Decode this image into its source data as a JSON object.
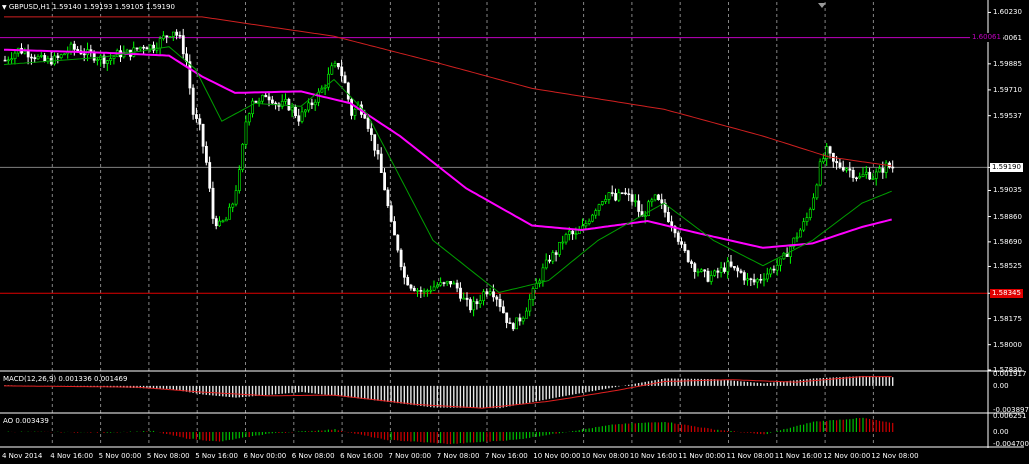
{
  "main_panel": {
    "symbol_label": "GBPUSD,H1",
    "ohlc": "1.59140 1.59193 1.59105 1.59190",
    "price_labels": [
      "1.60230",
      "1.60061",
      "1.59885",
      "1.59710",
      "1.59537",
      "1.59190",
      "1.59035",
      "1.58860",
      "1.58690",
      "1.58525",
      "1.58345",
      "1.58175",
      "1.58000",
      "1.57830"
    ],
    "current_price_tag": "1.59190",
    "upper_line_tag": "1.60061",
    "lower_line_tag": "1.58345",
    "colors": {
      "bull": "#00ff00",
      "bear": "#ffffff",
      "ma_fast": "#00a000",
      "ma_mid": "#ff00ff",
      "ma_slow": "#d02020",
      "hline_upper": "#c000c0",
      "hline_lower": "#e00000",
      "price_line": "#808080"
    }
  },
  "macd_panel": {
    "label": "MACD(12,26,9) 0.001336 0.001469",
    "scale_labels": [
      "0.001917",
      "0.00",
      "-0.003897"
    ]
  },
  "ao_panel": {
    "label": "AO 0.003439",
    "scale_labels": [
      "0.006251",
      "0.00",
      "-0.004700"
    ]
  },
  "time_axis": {
    "labels": [
      "4 Nov 2014",
      "4 Nov 16:00",
      "5 Nov 00:00",
      "5 Nov 08:00",
      "5 Nov 16:00",
      "6 Nov 00:00",
      "6 Nov 08:00",
      "6 Nov 16:00",
      "7 Nov 00:00",
      "7 Nov 08:00",
      "7 Nov 16:00",
      "10 Nov 00:00",
      "10 Nov 08:00",
      "10 Nov 16:00",
      "11 Nov 00:00",
      "11 Nov 08:00",
      "11 Nov 16:00",
      "12 Nov 00:00",
      "12 Nov 08:00"
    ]
  },
  "chart_data": {
    "type": "candlestick",
    "symbol": "GBPUSD",
    "timeframe": "H1",
    "ylim": [
      1.5783,
      1.603
    ],
    "horizontal_lines": [
      1.60061,
      1.58345
    ],
    "current_price": 1.5919,
    "close_path": [
      [
        0,
        1.5991
      ],
      [
        4,
        1.5998
      ],
      [
        8,
        1.5995
      ],
      [
        12,
        1.599
      ],
      [
        16,
        1.5992
      ],
      [
        20,
        1.5999
      ],
      [
        24,
        1.5996
      ],
      [
        28,
        1.5993
      ],
      [
        31,
        1.5991
      ],
      [
        34,
        1.5995
      ],
      [
        38,
        1.5996
      ],
      [
        42,
        1.6001
      ],
      [
        45,
        1.6
      ],
      [
        48,
        1.6006
      ],
      [
        51,
        1.6011
      ],
      [
        53,
        1.6005
      ],
      [
        55,
        1.599
      ],
      [
        57,
        1.5955
      ],
      [
        59,
        1.5945
      ],
      [
        61,
        1.5922
      ],
      [
        63,
        1.5885
      ],
      [
        65,
        1.588
      ],
      [
        67,
        1.5884
      ],
      [
        69,
        1.5895
      ],
      [
        71,
        1.5915
      ],
      [
        73,
        1.595
      ],
      [
        75,
        1.5965
      ],
      [
        77,
        1.5962
      ],
      [
        79,
        1.5968
      ],
      [
        81,
        1.5965
      ],
      [
        83,
        1.596
      ],
      [
        85,
        1.5962
      ],
      [
        87,
        1.5958
      ],
      [
        89,
        1.5952
      ],
      [
        91,
        1.5957
      ],
      [
        93,
        1.5962
      ],
      [
        95,
        1.5968
      ],
      [
        97,
        1.5975
      ],
      [
        99,
        1.5985
      ],
      [
        101,
        1.5988
      ],
      [
        103,
        1.5975
      ],
      [
        105,
        1.5955
      ],
      [
        107,
        1.596
      ],
      [
        109,
        1.5955
      ],
      [
        111,
        1.594
      ],
      [
        113,
        1.5925
      ],
      [
        115,
        1.5905
      ],
      [
        117,
        1.588
      ],
      [
        119,
        1.5865
      ],
      [
        121,
        1.5845
      ],
      [
        123,
        1.584
      ],
      [
        125,
        1.5837
      ],
      [
        127,
        1.5835
      ],
      [
        129,
        1.5838
      ],
      [
        131,
        1.584
      ],
      [
        133,
        1.584
      ],
      [
        135,
        1.5842
      ],
      [
        137,
        1.5838
      ],
      [
        139,
        1.583
      ],
      [
        141,
        1.5825
      ],
      [
        143,
        1.5828
      ],
      [
        145,
        1.5835
      ],
      [
        147,
        1.5838
      ],
      [
        149,
        1.5832
      ],
      [
        151,
        1.5822
      ],
      [
        153,
        1.5812
      ],
      [
        155,
        1.5815
      ],
      [
        157,
        1.582
      ],
      [
        159,
        1.583
      ],
      [
        161,
        1.584
      ],
      [
        163,
        1.585
      ],
      [
        165,
        1.5858
      ],
      [
        167,
        1.5862
      ],
      [
        169,
        1.587
      ],
      [
        171,
        1.5875
      ],
      [
        173,
        1.5873
      ],
      [
        175,
        1.5878
      ],
      [
        177,
        1.5885
      ],
      [
        179,
        1.5892
      ],
      [
        181,
        1.5898
      ],
      [
        183,
        1.5902
      ],
      [
        185,
        1.5897
      ],
      [
        187,
        1.5902
      ],
      [
        189,
        1.5899
      ],
      [
        191,
        1.5895
      ],
      [
        193,
        1.5885
      ],
      [
        195,
        1.5893
      ],
      [
        197,
        1.5898
      ],
      [
        199,
        1.5893
      ],
      [
        201,
        1.5885
      ],
      [
        203,
        1.5878
      ],
      [
        205,
        1.5865
      ],
      [
        207,
        1.5858
      ],
      [
        209,
        1.5852
      ],
      [
        211,
        1.5848
      ],
      [
        213,
        1.5845
      ],
      [
        215,
        1.5847
      ],
      [
        217,
        1.585
      ],
      [
        219,
        1.5853
      ],
      [
        221,
        1.585
      ],
      [
        223,
        1.5848
      ],
      [
        225,
        1.5843
      ],
      [
        227,
        1.5842
      ],
      [
        229,
        1.5845
      ],
      [
        231,
        1.5848
      ],
      [
        233,
        1.5852
      ],
      [
        235,
        1.5855
      ],
      [
        237,
        1.5862
      ],
      [
        239,
        1.587
      ],
      [
        241,
        1.5877
      ],
      [
        243,
        1.5885
      ],
      [
        245,
        1.59
      ],
      [
        247,
        1.592
      ],
      [
        249,
        1.593
      ],
      [
        251,
        1.5922
      ],
      [
        253,
        1.592
      ],
      [
        255,
        1.5919
      ],
      [
        257,
        1.5915
      ],
      [
        259,
        1.5912
      ],
      [
        261,
        1.5915
      ],
      [
        263,
        1.5913
      ],
      [
        265,
        1.5916
      ],
      [
        267,
        1.592
      ],
      [
        269,
        1.5919
      ]
    ],
    "ma_fast": [
      [
        0,
        1.5988
      ],
      [
        30,
        1.5993
      ],
      [
        50,
        1.6
      ],
      [
        58,
        1.5985
      ],
      [
        66,
        1.595
      ],
      [
        76,
        1.5962
      ],
      [
        90,
        1.596
      ],
      [
        100,
        1.5978
      ],
      [
        110,
        1.5955
      ],
      [
        130,
        1.587
      ],
      [
        150,
        1.5835
      ],
      [
        165,
        1.5843
      ],
      [
        180,
        1.587
      ],
      [
        200,
        1.5895
      ],
      [
        215,
        1.587
      ],
      [
        230,
        1.5853
      ],
      [
        245,
        1.587
      ],
      [
        260,
        1.5895
      ],
      [
        269,
        1.5903
      ]
    ],
    "ma_mid": [
      [
        0,
        1.5998
      ],
      [
        30,
        1.5996
      ],
      [
        50,
        1.5994
      ],
      [
        60,
        1.598
      ],
      [
        70,
        1.5969
      ],
      [
        90,
        1.597
      ],
      [
        105,
        1.5962
      ],
      [
        120,
        1.594
      ],
      [
        140,
        1.5905
      ],
      [
        160,
        1.588
      ],
      [
        175,
        1.5877
      ],
      [
        195,
        1.5883
      ],
      [
        210,
        1.5875
      ],
      [
        230,
        1.5865
      ],
      [
        245,
        1.5868
      ],
      [
        260,
        1.5879
      ],
      [
        269,
        1.5884
      ]
    ],
    "ma_slow": [
      [
        0,
        1.602
      ],
      [
        60,
        1.602
      ],
      [
        100,
        1.6007
      ],
      [
        130,
        1.599
      ],
      [
        160,
        1.5972
      ],
      [
        200,
        1.5958
      ],
      [
        230,
        1.594
      ],
      [
        250,
        1.5926
      ],
      [
        269,
        1.592
      ]
    ],
    "macd_hist": [
      [
        0,
        0.0001
      ],
      [
        30,
        -0.0002
      ],
      [
        50,
        -0.0005
      ],
      [
        60,
        -0.0014
      ],
      [
        70,
        -0.0019
      ],
      [
        90,
        -0.001
      ],
      [
        110,
        -0.0022
      ],
      [
        130,
        -0.0035
      ],
      [
        150,
        -0.0036
      ],
      [
        170,
        -0.0016
      ],
      [
        185,
        -0.0002
      ],
      [
        200,
        0.0012
      ],
      [
        215,
        0.0011
      ],
      [
        230,
        0.0004
      ],
      [
        245,
        0.0012
      ],
      [
        260,
        0.0016
      ],
      [
        269,
        0.0014
      ]
    ],
    "macd_signal": [
      [
        0,
        0.0
      ],
      [
        40,
        -0.0002
      ],
      [
        60,
        -0.001
      ],
      [
        80,
        -0.0016
      ],
      [
        100,
        -0.0015
      ],
      [
        125,
        -0.003
      ],
      [
        145,
        -0.0036
      ],
      [
        165,
        -0.0025
      ],
      [
        185,
        -0.0008
      ],
      [
        200,
        0.0007
      ],
      [
        220,
        0.001
      ],
      [
        240,
        0.0006
      ],
      [
        260,
        0.0015
      ],
      [
        269,
        0.0015
      ]
    ],
    "ao_values": [
      [
        0,
        0.0001
      ],
      [
        30,
        -0.0002
      ],
      [
        45,
        0.0003
      ],
      [
        55,
        -0.0025
      ],
      [
        65,
        -0.0038
      ],
      [
        80,
        -0.0006
      ],
      [
        100,
        0.001
      ],
      [
        115,
        -0.003
      ],
      [
        135,
        -0.0047
      ],
      [
        155,
        -0.003
      ],
      [
        170,
        0.0
      ],
      [
        185,
        0.003
      ],
      [
        200,
        0.004
      ],
      [
        215,
        0.001
      ],
      [
        230,
        -0.001
      ],
      [
        245,
        0.004
      ],
      [
        260,
        0.0055
      ],
      [
        269,
        0.0034
      ]
    ]
  }
}
